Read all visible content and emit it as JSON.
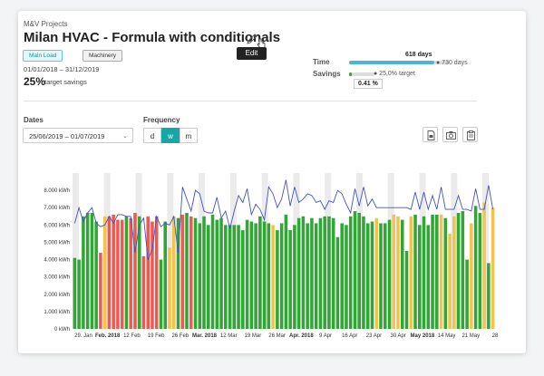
{
  "project": {
    "breadcrumb": "M&V Projects",
    "title": "Milan HVAC - Formula with conditionals",
    "edit_tooltip": "Edit",
    "tags": [
      "Main Load",
      "Machinery"
    ],
    "date_range": "01/01/2018 – 31/12/2019",
    "target_pct": "25%",
    "target_label": "target savings"
  },
  "summary": {
    "time_label": "Time",
    "time_value": "618 days",
    "time_total": "● 730 days",
    "time_fraction": 0.85,
    "savings_label": "Savings",
    "savings_target": "● 25,0% target",
    "savings_value": "0.41 %",
    "savings_fraction": 0.016
  },
  "filters": {
    "dates_label": "Dates",
    "dates_value": "25/06/2019 – 01/07/2019",
    "frequency_label": "Frequency",
    "frequency_options": [
      "d",
      "w",
      "m"
    ],
    "frequency_selected": "w"
  },
  "icons": {
    "edit": "pencil-icon",
    "pdf": "pdf-icon",
    "camera": "camera-icon",
    "clipboard": "clipboard-icon",
    "dropdown": "chevron-down-icon"
  },
  "colors": {
    "accent": "#18a5a5",
    "bar_green": "#31a636",
    "bar_red": "#ee5a52",
    "bar_yellow": "#f2c34e",
    "line": "#4452c2",
    "band": "#ebebeb"
  },
  "chart_data": {
    "type": "bar",
    "ylabel": "",
    "ylim": [
      0,
      9000
    ],
    "y_ticks": [
      "0 kWh",
      "1.000 kWh",
      "2.000 kWh",
      "3.000 kWh",
      "4.000 kWh",
      "5.000 kWh",
      "6.000 kWh",
      "7.000 kWh",
      "8.000 kWh"
    ],
    "x_ticks": [
      "29. Jan",
      "Feb. 2018",
      "12 Feb",
      "19 Feb",
      "26 Feb",
      "Mar. 2018",
      "12 Mar",
      "19 Mar",
      "26 Mar",
      "Apr. 2018",
      "9 Apr",
      "16 Apr",
      "23 Apr",
      "30 Apr",
      "May 2018",
      "14 May",
      "21 May",
      "28"
    ],
    "x_ticks_bold": [
      false,
      true,
      false,
      false,
      false,
      true,
      false,
      false,
      false,
      true,
      false,
      false,
      false,
      false,
      true,
      false,
      false,
      false
    ],
    "series": [
      {
        "type": "bar",
        "values": [
          4100,
          4000,
          6500,
          6700,
          6700,
          6200,
          4400,
          6500,
          6500,
          6600,
          6300,
          6300,
          6500,
          6400,
          6700,
          6500,
          4200,
          6500,
          6200,
          6500,
          4000,
          6200,
          4700,
          6500,
          6400,
          6600,
          6700,
          6500,
          6400,
          6100,
          6500,
          6000,
          6600,
          6300,
          6400,
          6000,
          6000,
          6000,
          6000,
          5700,
          6300,
          6200,
          6100,
          6500,
          6200,
          6100,
          6000,
          5700,
          6100,
          6600,
          5700,
          6000,
          6400,
          6500,
          6100,
          6400,
          6100,
          6400,
          6500,
          6500,
          6400,
          5300,
          6100,
          6000,
          6500,
          6800,
          6700,
          6500,
          6100,
          6200,
          6400,
          6100,
          6100,
          6300,
          6600,
          6500,
          6300,
          4500,
          6500,
          6600,
          6000,
          6500,
          6000,
          6600,
          6600,
          6600,
          6400,
          5500,
          6500,
          6700,
          6800,
          4000,
          6100,
          7100,
          6700,
          7300,
          3800,
          7000
        ],
        "categories_color": [
          "g",
          "g",
          "g",
          "g",
          "g",
          "g",
          "r",
          "y",
          "r",
          "r",
          "r",
          "r",
          "g",
          "r",
          "r",
          "g",
          "r",
          "r",
          "r",
          "r",
          "g",
          "g",
          "y",
          "y",
          "g",
          "r",
          "g",
          "r",
          "g",
          "g",
          "g",
          "g",
          "g",
          "g",
          "g",
          "g",
          "g",
          "g",
          "g",
          "g",
          "g",
          "g",
          "g",
          "g",
          "g",
          "g",
          "y",
          "g",
          "g",
          "g",
          "g",
          "g",
          "g",
          "g",
          "g",
          "g",
          "g",
          "g",
          "g",
          "g",
          "g",
          "g",
          "g",
          "g",
          "g",
          "g",
          "g",
          "g",
          "g",
          "g",
          "y",
          "g",
          "g",
          "g",
          "y",
          "y",
          "g",
          "g",
          "y",
          "g",
          "g",
          "g",
          "g",
          "g",
          "g",
          "y",
          "g",
          "y",
          "y",
          "g",
          "g",
          "g",
          "y",
          "g",
          "g",
          "y",
          "g",
          "y"
        ]
      },
      {
        "type": "line",
        "values": [
          6100,
          7000,
          6200,
          6700,
          7000,
          6100,
          5900,
          6000,
          6500,
          6100,
          6600,
          6600,
          6500,
          6500,
          4400,
          6000,
          6400,
          4000,
          4600,
          6500,
          5900,
          6100,
          6000,
          6500,
          4400,
          8200,
          7500,
          6800,
          8000,
          7800,
          6800,
          6700,
          6700,
          7600,
          6400,
          6800,
          5800,
          6800,
          7700,
          7300,
          8100,
          6600,
          7200,
          6900,
          6300,
          8200,
          7800,
          7000,
          7500,
          8600,
          7100,
          8200,
          7300,
          7500,
          7800,
          7700,
          7300,
          7400,
          6900,
          7400,
          7300,
          8000,
          7800,
          7200,
          6700,
          8100,
          7100,
          8200,
          7100,
          7500,
          7000,
          7000,
          7000,
          7000,
          7000,
          7000,
          7000,
          7000,
          6900,
          7900,
          6900,
          7900,
          6900,
          7700,
          6900,
          8200,
          6900,
          6900,
          6900,
          7700,
          6900,
          6900,
          6800,
          8100,
          6900,
          6900,
          8300,
          6900
        ]
      }
    ]
  }
}
